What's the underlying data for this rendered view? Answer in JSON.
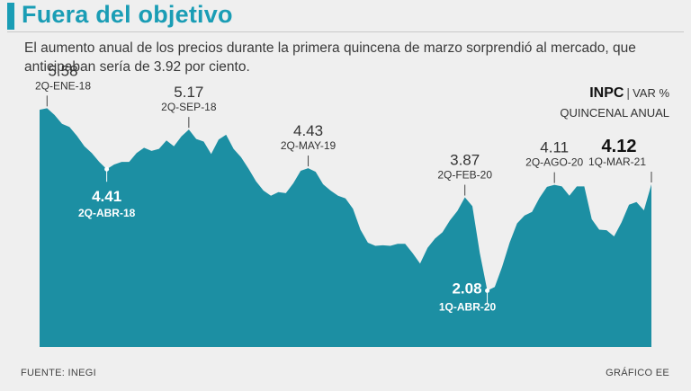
{
  "title": "Fuera del objetivo",
  "subtitle": "El aumento anual de los precios durante la primera quincena de marzo sorprendió al mercado, que anticipaban sería de 3.92 por ciento.",
  "legend": {
    "key": "INPC",
    "separator": "|",
    "unit": "VAR %",
    "subtitle": "QUINCENAL ANUAL"
  },
  "footer": {
    "source": "FUENTE: INEGI",
    "credit": "GRÁFICO EE"
  },
  "colors": {
    "accent": "#1a9db5",
    "fill": "#1c8fa3",
    "background": "#efefef"
  },
  "chart_data": {
    "type": "area",
    "title": "Fuera del objetivo",
    "ylabel": "INPC VAR % QUINCENAL ANUAL",
    "xlabel": "",
    "ylim": [
      1.0,
      6.0
    ],
    "values": [
      5.55,
      5.58,
      5.45,
      5.28,
      5.22,
      5.05,
      4.85,
      4.72,
      4.55,
      4.41,
      4.5,
      4.55,
      4.55,
      4.72,
      4.82,
      4.76,
      4.8,
      4.96,
      4.85,
      5.04,
      5.17,
      4.99,
      4.94,
      4.7,
      4.98,
      5.07,
      4.8,
      4.64,
      4.42,
      4.18,
      4.0,
      3.9,
      3.97,
      3.95,
      4.14,
      4.38,
      4.43,
      4.36,
      4.12,
      4.0,
      3.9,
      3.85,
      3.65,
      3.25,
      3.0,
      2.94,
      2.95,
      2.94,
      2.98,
      2.98,
      2.8,
      2.6,
      2.9,
      3.08,
      3.2,
      3.43,
      3.61,
      3.87,
      3.7,
      2.8,
      2.08,
      2.15,
      2.54,
      3.0,
      3.37,
      3.52,
      3.59,
      3.86,
      4.07,
      4.11,
      4.08,
      3.9,
      4.08,
      4.08,
      3.45,
      3.25,
      3.24,
      3.12,
      3.39,
      3.73,
      3.78,
      3.62,
      4.12
    ],
    "annotations": [
      {
        "index": 1,
        "value": "5.58",
        "date": "2Q-ENE-18",
        "style": "above"
      },
      {
        "index": 9,
        "value": "4.41",
        "date": "2Q-ABR-18",
        "style": "inside"
      },
      {
        "index": 20,
        "value": "5.17",
        "date": "2Q-SEP-18",
        "style": "above"
      },
      {
        "index": 36,
        "value": "4.43",
        "date": "2Q-MAY-19",
        "style": "above"
      },
      {
        "index": 57,
        "value": "3.87",
        "date": "2Q-FEB-20",
        "style": "above"
      },
      {
        "index": 60,
        "value": "2.08",
        "date": "1Q-ABR-20",
        "style": "inside"
      },
      {
        "index": 69,
        "value": "4.11",
        "date": "2Q-AGO-20",
        "style": "above"
      },
      {
        "index": 82,
        "value": "4.12",
        "date": "1Q-MAR-21",
        "style": "above-bold"
      }
    ]
  }
}
